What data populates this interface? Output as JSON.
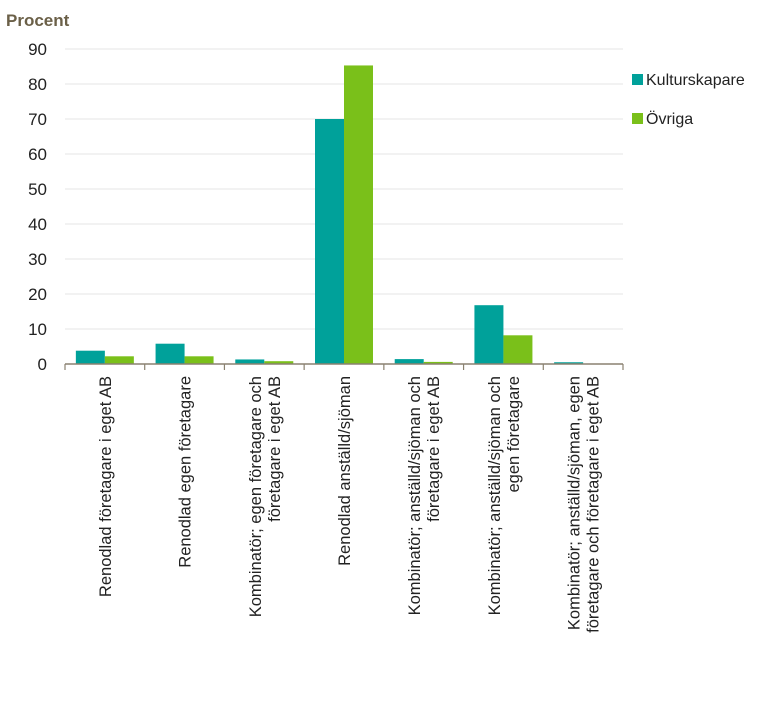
{
  "chart_data": {
    "type": "bar",
    "title": "",
    "ylabel": "Procent",
    "xlabel": "",
    "ylim": [
      0,
      90
    ],
    "yticks": [
      0,
      10,
      20,
      30,
      40,
      50,
      60,
      70,
      80,
      90
    ],
    "grid": true,
    "legend_position": "top-right",
    "categories": [
      [
        "Renodlad företagare i eget AB"
      ],
      [
        "Renodlad egen företagare"
      ],
      [
        "Kombinatör; egen företagare och",
        "företagare i eget AB"
      ],
      [
        "Renodlad anställd/sjöman"
      ],
      [
        "Kombinatör; anställd/sjöman och",
        "företagare i eget AB"
      ],
      [
        "Kombinatör; anställd/sjöman och",
        "egen företagare"
      ],
      [
        "Kombinatör; anställd/sjöman, egen",
        "företagare och företagare i eget AB"
      ]
    ],
    "series": [
      {
        "name": "Kulturskapare",
        "color": "#00a19a",
        "values": [
          3.8,
          5.8,
          1.3,
          70,
          1.4,
          16.8,
          0.5
        ]
      },
      {
        "name": "Övriga",
        "color": "#7ac01a",
        "values": [
          2.2,
          2.2,
          0.8,
          85.3,
          0.6,
          8.2,
          0.1
        ]
      }
    ]
  }
}
